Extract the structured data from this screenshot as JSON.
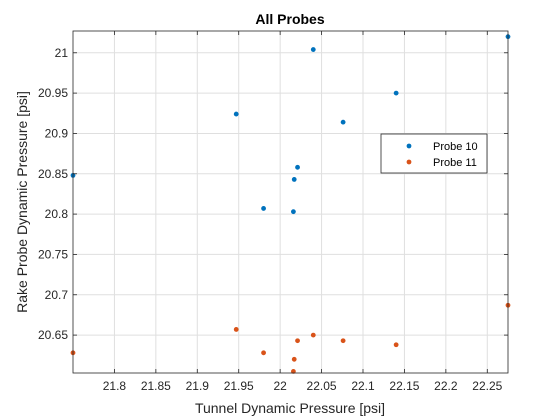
{
  "chart_data": {
    "type": "scatter",
    "title": "All Probes",
    "xlabel": "Tunnel Dynamic Pressure [psi]",
    "ylabel": "Rake Probe Dynamic Pressure [psi]",
    "xlim": [
      21.75,
      22.275
    ],
    "ylim": [
      20.603,
      21.027
    ],
    "xticks": [
      "21.8",
      "21.85",
      "21.9",
      "21.95",
      "22",
      "22.05",
      "22.1",
      "22.15",
      "22.2",
      "22.25"
    ],
    "yticks": [
      "20.65",
      "20.7",
      "20.75",
      "20.8",
      "20.85",
      "20.9",
      "20.95",
      "21"
    ],
    "grid": true,
    "legend_position": "right",
    "series": [
      {
        "name": "Probe 10",
        "color": "#0072BD",
        "points": [
          {
            "x": 21.75,
            "y": 20.848
          },
          {
            "x": 21.947,
            "y": 20.924
          },
          {
            "x": 21.98,
            "y": 20.807
          },
          {
            "x": 22.016,
            "y": 20.803
          },
          {
            "x": 22.017,
            "y": 20.843
          },
          {
            "x": 22.021,
            "y": 20.858
          },
          {
            "x": 22.04,
            "y": 21.004
          },
          {
            "x": 22.076,
            "y": 20.914
          },
          {
            "x": 22.14,
            "y": 20.95
          },
          {
            "x": 22.275,
            "y": 21.02
          }
        ]
      },
      {
        "name": "Probe 11",
        "color": "#D95319",
        "points": [
          {
            "x": 21.75,
            "y": 20.628
          },
          {
            "x": 21.947,
            "y": 20.657
          },
          {
            "x": 21.98,
            "y": 20.628
          },
          {
            "x": 22.016,
            "y": 20.605
          },
          {
            "x": 22.017,
            "y": 20.62
          },
          {
            "x": 22.021,
            "y": 20.643
          },
          {
            "x": 22.04,
            "y": 20.65
          },
          {
            "x": 22.076,
            "y": 20.643
          },
          {
            "x": 22.14,
            "y": 20.638
          },
          {
            "x": 22.275,
            "y": 20.687
          }
        ]
      }
    ]
  }
}
